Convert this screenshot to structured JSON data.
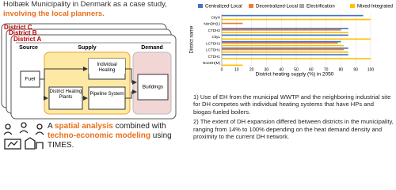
{
  "intro": {
    "text": "Holbæk Municipality in Denmark as a case study, ",
    "highlight": "involving the local planners."
  },
  "diagram": {
    "districts": [
      "District C",
      "District B",
      "District A"
    ],
    "columns": [
      "Source",
      "Supply",
      "Demand"
    ],
    "nodes": [
      "Fuel",
      "Individual Heating",
      "District Heating Plants",
      "Pipeline System",
      "Buildings"
    ]
  },
  "summary": [
    {
      "text": "A "
    },
    {
      "text": "spatial analysis",
      "emphasis": true
    },
    {
      "text": " combined with "
    },
    {
      "text": "techno-economic modeling",
      "emphasis": true
    },
    {
      "text": " using TIMES."
    }
  ],
  "chart_data": {
    "type": "barh",
    "categories": [
      "CityH",
      "NonDH(L)",
      "CTDH2",
      "CityL",
      "LCTDH2",
      "LCTDH1",
      "CTDH1",
      "NonDH(M)"
    ],
    "series": [
      {
        "name": "Centralized-Local",
        "color": "#4472c4",
        "values": [
          95,
          0,
          85,
          85,
          80,
          85,
          85,
          0
        ]
      },
      {
        "name": "Decentralized-Local",
        "color": "#ed7d31",
        "values": [
          0,
          14,
          80,
          0,
          78,
          82,
          0,
          0
        ]
      },
      {
        "name": "Electrification",
        "color": "#a5a5a5",
        "values": [
          0,
          0,
          0,
          0,
          0,
          0,
          0,
          0
        ]
      },
      {
        "name": "Mixed-Integrated",
        "color": "#ffc000",
        "values": [
          100,
          0,
          85,
          100,
          82,
          85,
          100,
          14
        ]
      }
    ],
    "xlabel": "District heating supply (%) in 2050",
    "ylabel": "District name",
    "xlim": [
      0,
      100
    ],
    "xticks": [
      0,
      10,
      20,
      30,
      40,
      50,
      60,
      70,
      80,
      90,
      100
    ],
    "grid": true
  },
  "findings": [
    "1) Use of EH from the municipal WWTP and the neighboring industrial site for DH competes with individual heating systems that have HPs and biogas-fueled boilers.",
    "2) The extent of DH expansion differed between districts in the municipality, ranging from 14% to 100% depending on the heat demand density and proximity to the current DH network."
  ]
}
